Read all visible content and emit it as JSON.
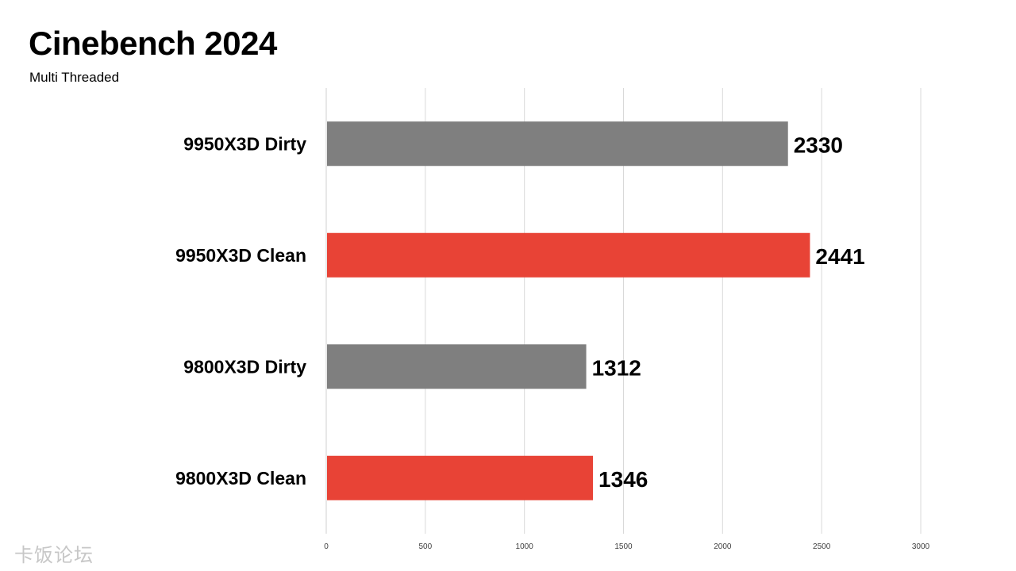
{
  "header": {
    "title": "Cinebench 2024",
    "subtitle": "Multi Threaded"
  },
  "watermark": "卡饭论坛",
  "colors": {
    "dirty": "#7f7f7f",
    "clean": "#e84336",
    "grid": "#d9d9d9",
    "text": "#000000"
  },
  "chart_data": {
    "type": "bar",
    "orientation": "horizontal",
    "title": "Cinebench 2024",
    "subtitle": "Multi Threaded",
    "categories": [
      "9950X3D Dirty",
      "9950X3D Clean",
      "9800X3D Dirty",
      "9800X3D Clean"
    ],
    "values": [
      2330,
      2441,
      1312,
      1346
    ],
    "bar_colors": [
      "#7f7f7f",
      "#e84336",
      "#7f7f7f",
      "#e84336"
    ],
    "xlim": [
      0,
      3000
    ],
    "xticks": [
      0,
      500,
      1000,
      1500,
      2000,
      2500,
      3000
    ],
    "xlabel": "",
    "ylabel": "",
    "grid": true,
    "legend": "none",
    "data_labels": true
  }
}
